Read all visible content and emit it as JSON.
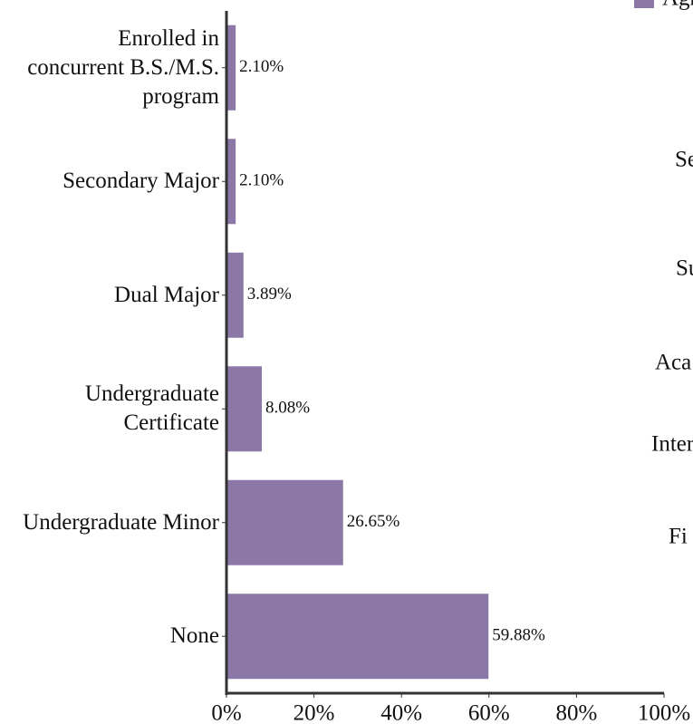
{
  "chart_data": {
    "type": "barh",
    "categories": [
      "Enrolled in\nconcurrent B.S./M.S.\nprogram",
      "Secondary Major",
      "Dual Major",
      "Undergraduate\nCertificate",
      "Undergraduate Minor",
      "None"
    ],
    "series": [
      {
        "name": "Agr",
        "color": "#8b78a6",
        "values": [
          2.1,
          2.1,
          3.89,
          8.08,
          26.65,
          59.88
        ],
        "value_labels": [
          "2.10%",
          "2.10%",
          "3.89%",
          "8.08%",
          "26.65%",
          "59.88%"
        ]
      }
    ],
    "xlim": [
      0,
      100
    ],
    "xticks": [
      {
        "value": 0,
        "label": "0%"
      },
      {
        "value": 20,
        "label": "20%"
      },
      {
        "value": 40,
        "label": "40%"
      },
      {
        "value": 60,
        "label": "60%"
      },
      {
        "value": 80,
        "label": "80%"
      },
      {
        "value": 100,
        "label": "100%"
      }
    ],
    "neighbor_chart_labels": [
      "Se",
      "Su",
      "Aca",
      "Inter",
      "Fi"
    ]
  }
}
